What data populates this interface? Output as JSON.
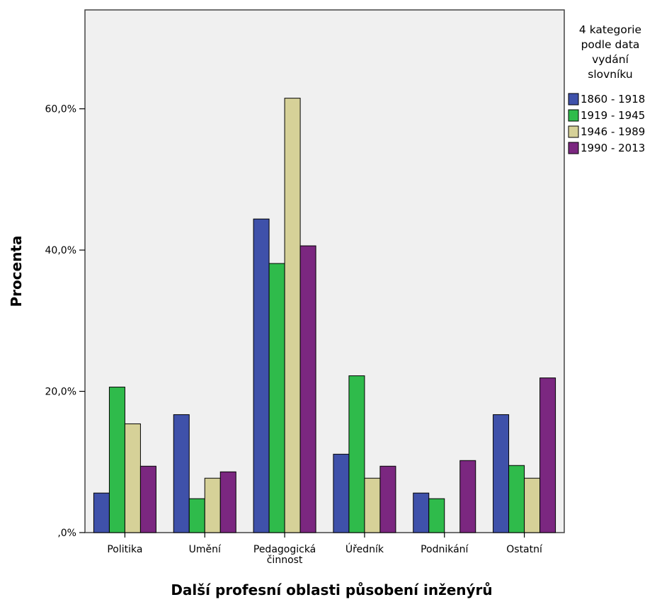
{
  "chart_data": {
    "type": "bar",
    "title": "",
    "xlabel": "Další profesní oblasti působení inženýrů",
    "ylabel": "Procenta",
    "ylim": [
      0,
      74
    ],
    "yticks": [
      0,
      20,
      40,
      60
    ],
    "ytick_labels": [
      ",0%",
      "20,0%",
      "40,0%",
      "60,0%"
    ],
    "grid": false,
    "legend_position": "right",
    "categories": [
      [
        "Politika"
      ],
      [
        "Umění"
      ],
      [
        "Pedagogická",
        "činnost"
      ],
      [
        "Úředník"
      ],
      [
        "Podnikání"
      ],
      [
        "Ostatní"
      ]
    ],
    "legend_title": [
      "4 kategorie",
      "podle data",
      "vydání",
      "slovníku"
    ],
    "series": [
      {
        "name": "1860 - 1918",
        "color": "#3f51aa",
        "values": [
          5.6,
          16.7,
          44.4,
          11.1,
          5.6,
          16.7
        ]
      },
      {
        "name": "1919 - 1945",
        "color": "#2fbb4b",
        "values": [
          20.6,
          4.8,
          38.1,
          22.2,
          4.8,
          9.5
        ]
      },
      {
        "name": "1946 - 1989",
        "color": "#d6d198",
        "values": [
          15.4,
          7.7,
          61.5,
          7.7,
          0.0,
          7.7
        ]
      },
      {
        "name": "1990 - 2013",
        "color": "#7b2780",
        "values": [
          9.4,
          8.6,
          40.6,
          9.4,
          10.2,
          21.9
        ]
      }
    ],
    "plot_background": "#f0f0f0"
  }
}
